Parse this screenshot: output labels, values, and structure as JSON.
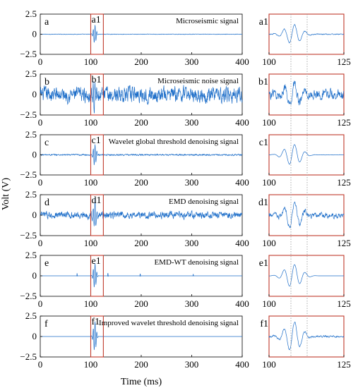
{
  "figure": {
    "ylabel": "Volt (V)",
    "xlabel": "Time (ms)",
    "colors": {
      "signal": "#1f6fc9",
      "box": "#c0392b",
      "axis": "#000000",
      "guide": "#999999"
    }
  },
  "chart_data": [
    {
      "type": "line",
      "panel": "a",
      "label": "a",
      "box_label": "a1",
      "annotation": "Microseismic signal",
      "xlim": [
        0,
        400
      ],
      "ylim": [
        -2.5,
        2.5
      ],
      "xticks": [
        "0",
        "100",
        "200",
        "300",
        "400"
      ],
      "yticks": [
        "2.5",
        "0",
        "−2.5"
      ],
      "highlight_window": [
        100,
        125
      ],
      "burst_center": 108,
      "burst_amplitude": 1.2,
      "noise_amplitude": 0.04
    },
    {
      "type": "line",
      "panel": "b",
      "label": "b",
      "box_label": "b1",
      "annotation": "Microseismic noise signal",
      "xlim": [
        0,
        400
      ],
      "ylim": [
        -2.5,
        2.5
      ],
      "xticks": [
        "0",
        "100",
        "200",
        "300",
        "400"
      ],
      "yticks": [
        "2.5",
        "0",
        "−2.5"
      ],
      "highlight_window": [
        100,
        125
      ],
      "burst_center": 108,
      "burst_amplitude": 1.6,
      "noise_amplitude": 1.2
    },
    {
      "type": "line",
      "panel": "c",
      "label": "c",
      "box_label": "c1",
      "annotation": "Wavelet global threshold denoising signal",
      "xlim": [
        0,
        400
      ],
      "ylim": [
        -2.5,
        2.5
      ],
      "xticks": [
        "0",
        "100",
        "200",
        "300",
        "400"
      ],
      "yticks": [
        "2.5",
        "0",
        "−2.5"
      ],
      "highlight_window": [
        100,
        125
      ],
      "burst_center": 108,
      "burst_amplitude": 1.4,
      "noise_amplitude": 0.12
    },
    {
      "type": "line",
      "panel": "d",
      "label": "d",
      "box_label": "d1",
      "annotation": "EMD denoising signal",
      "xlim": [
        0,
        400
      ],
      "ylim": [
        -2.5,
        2.5
      ],
      "xticks": [
        "0",
        "100",
        "200",
        "300",
        "400"
      ],
      "yticks": [
        "2.5",
        "0",
        "−2.5"
      ],
      "highlight_window": [
        100,
        125
      ],
      "burst_center": 108,
      "burst_amplitude": 1.8,
      "noise_amplitude": 0.55
    },
    {
      "type": "line",
      "panel": "e",
      "label": "e",
      "box_label": "e1",
      "annotation": "EMD-WT denoising signal",
      "xlim": [
        0,
        400
      ],
      "ylim": [
        -2.5,
        2.5
      ],
      "xticks": [
        "0",
        "100",
        "200",
        "300",
        "400"
      ],
      "yticks": [
        "2.5",
        "0",
        "−2.5"
      ],
      "highlight_window": [
        100,
        125
      ],
      "burst_center": 108,
      "burst_amplitude": 1.6,
      "noise_amplitude": 0.0,
      "spikes": [
        [
          73,
          0.35
        ],
        [
          134,
          0.45
        ],
        [
          198,
          0.35
        ],
        [
          303,
          0.25
        ]
      ]
    },
    {
      "type": "line",
      "panel": "f",
      "label": "f",
      "box_label": "f1",
      "annotation": "Improved wavelet threshold denoising signal",
      "xlim": [
        0,
        400
      ],
      "ylim": [
        -2.5,
        2.5
      ],
      "xticks": [
        "0",
        "100",
        "200",
        "300",
        "400"
      ],
      "yticks": [
        "2.5",
        "0",
        "−2.5"
      ],
      "highlight_window": [
        100,
        125
      ],
      "burst_center": 108,
      "burst_amplitude": 1.9,
      "noise_amplitude": 0.0
    },
    {
      "type": "line",
      "panel": "a1",
      "label": "a1",
      "xlim": [
        100,
        125
      ],
      "ylim": [
        -2.5,
        2.5
      ],
      "xticks": [
        "100",
        "125"
      ],
      "yticks": [],
      "burst_center": 108,
      "burst_amplitude": 1.2,
      "noise_amplitude": 0.08
    },
    {
      "type": "line",
      "panel": "b1",
      "label": "b1",
      "xlim": [
        100,
        125
      ],
      "ylim": [
        -2.5,
        2.5
      ],
      "xticks": [
        "100",
        "125"
      ],
      "yticks": [],
      "burst_center": 108,
      "burst_amplitude": 1.5,
      "noise_amplitude": 0.8
    },
    {
      "type": "line",
      "panel": "c1",
      "label": "c1",
      "xlim": [
        100,
        125
      ],
      "ylim": [
        -2.5,
        2.5
      ],
      "xticks": [
        "100",
        "125"
      ],
      "yticks": [],
      "burst_center": 108,
      "burst_amplitude": 1.3,
      "noise_amplitude": 0.03
    },
    {
      "type": "line",
      "panel": "d1",
      "label": "d1",
      "xlim": [
        100,
        125
      ],
      "ylim": [
        -2.5,
        2.5
      ],
      "xticks": [
        "100",
        "125"
      ],
      "yticks": [],
      "burst_center": 108,
      "burst_amplitude": 1.6,
      "noise_amplitude": 0.45
    },
    {
      "type": "line",
      "panel": "e1",
      "label": "e1",
      "xlim": [
        100,
        125
      ],
      "ylim": [
        -2.5,
        2.5
      ],
      "xticks": [
        "100",
        "125"
      ],
      "yticks": [],
      "burst_center": 108,
      "burst_amplitude": 1.4,
      "noise_amplitude": 0.0
    },
    {
      "type": "line",
      "panel": "f1",
      "label": "f1",
      "xlim": [
        100,
        125
      ],
      "ylim": [
        -2.5,
        2.5
      ],
      "xticks": [
        "100",
        "125"
      ],
      "yticks": [],
      "burst_center": 108,
      "burst_amplitude": 1.8,
      "noise_amplitude": 0.15
    }
  ]
}
